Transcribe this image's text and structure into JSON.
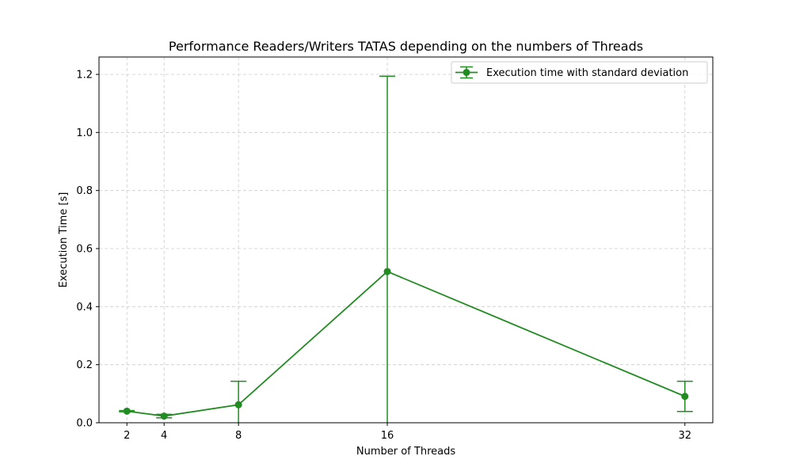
{
  "chart_data": {
    "type": "line",
    "title": "Performance Readers/Writers TATAS depending on the numbers of Threads",
    "xlabel": "Number of Threads",
    "ylabel": "Execution Time [s]",
    "x": [
      2,
      4,
      8,
      16,
      32
    ],
    "xticks": [
      "2",
      "4",
      "8",
      "16",
      "32"
    ],
    "xlim": [
      0.5,
      33.5
    ],
    "ylim": [
      0,
      1.26
    ],
    "yticks": [
      "0.0",
      "0.2",
      "0.4",
      "0.6",
      "0.8",
      "1.0",
      "1.2"
    ],
    "grid": true,
    "legend_position": "upper right",
    "series": [
      {
        "name": "Execution time with standard deviation",
        "color": "#228b22",
        "marker": "circle",
        "values": [
          0.04,
          0.023,
          0.062,
          0.521,
          0.091
        ],
        "yerr": [
          0.002,
          0.006,
          0.081,
          0.673,
          0.052
        ]
      }
    ]
  }
}
